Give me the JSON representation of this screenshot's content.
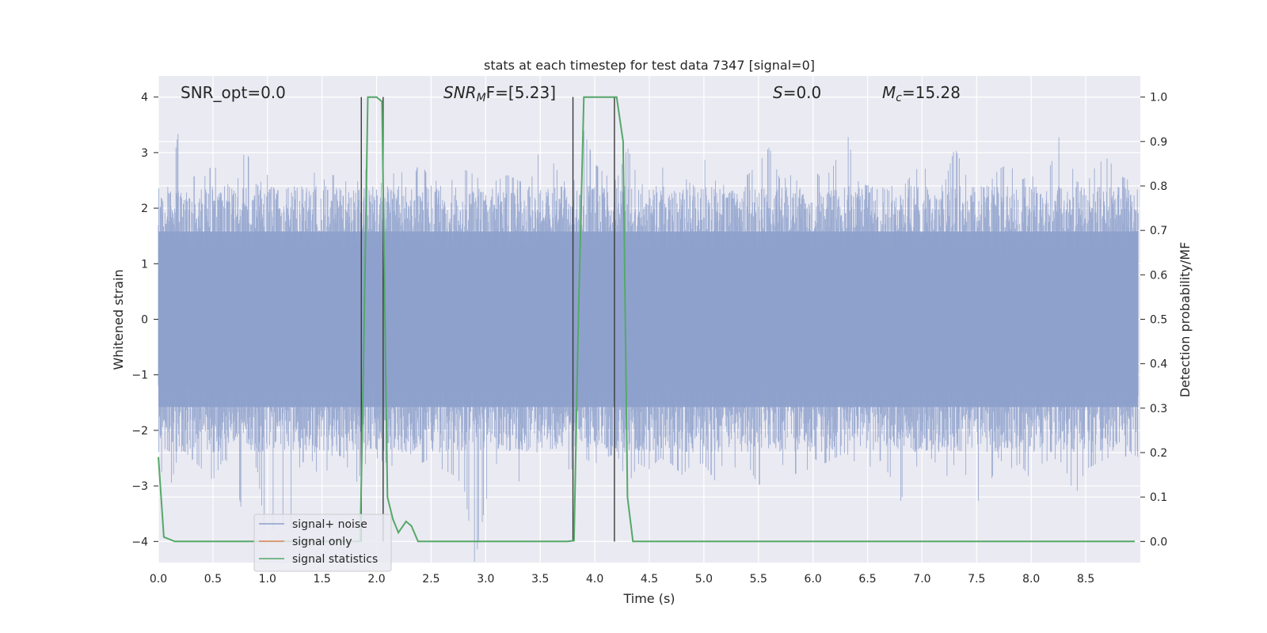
{
  "chart_data": {
    "type": "line",
    "title": "stats at each timestep for test data 7347 [signal=0]",
    "xlabel": "Time (s)",
    "ylabel": "Whitened strain",
    "ylabel_right": "Detection probability/MF",
    "xlim": [
      0.0,
      9.0
    ],
    "ylim": [
      -4.38,
      4.38
    ],
    "ylim_right": [
      -0.0475,
      1.0475
    ],
    "x_ticks": [
      0.0,
      0.5,
      1.0,
      1.5,
      2.0,
      2.5,
      3.0,
      3.5,
      4.0,
      4.5,
      5.0,
      5.5,
      6.0,
      6.5,
      7.0,
      7.5,
      8.0,
      8.5
    ],
    "x_tick_labels": [
      "0.0",
      "0.5",
      "1.0",
      "1.5",
      "2.0",
      "2.5",
      "3.0",
      "3.5",
      "4.0",
      "4.5",
      "5.0",
      "5.5",
      "6.0",
      "6.5",
      "7.0",
      "7.5",
      "8.0",
      "8.5"
    ],
    "y_ticks": [
      -4,
      -3,
      -2,
      -1,
      0,
      1,
      2,
      3,
      4
    ],
    "y_tick_labels": [
      "−4",
      "−3",
      "−2",
      "−1",
      "0",
      "1",
      "2",
      "3",
      "4"
    ],
    "y_right_ticks": [
      0.0,
      0.1,
      0.2,
      0.3,
      0.4,
      0.5,
      0.6,
      0.7,
      0.8,
      0.9,
      1.0
    ],
    "y_right_tick_labels": [
      "0.0",
      "0.1",
      "0.2",
      "0.3",
      "0.4",
      "0.5",
      "0.6",
      "0.7",
      "0.8",
      "0.9",
      "1.0"
    ],
    "grid": true,
    "legend_position": "lower-left",
    "annotations": {
      "snr_opt": "SNR_opt=0.0",
      "snr_mf_italic": "SNR",
      "snr_mf_sub": "M",
      "snr_mf_rest": "F=[5.23]",
      "s_italic": "S",
      "s_rest": "=0.0",
      "mc_italic": "M",
      "mc_sub": "c",
      "mc_rest": "=15.28"
    },
    "noise_envelope": {
      "x": [
        0.0,
        0.1,
        0.2,
        0.3,
        0.4,
        0.5,
        0.6,
        0.7,
        0.8,
        0.9,
        1.0,
        1.1,
        1.2,
        1.3,
        1.4,
        1.5,
        1.6,
        1.7,
        1.8,
        1.9,
        2.0,
        2.1,
        2.2,
        2.3,
        2.4,
        2.5,
        2.6,
        2.7,
        2.8,
        2.9,
        3.0,
        3.1,
        3.2,
        3.3,
        3.4,
        3.5,
        3.6,
        3.7,
        3.8,
        3.9,
        4.0,
        4.1,
        4.2,
        4.3,
        4.4,
        4.5,
        4.6,
        4.7,
        4.8,
        4.9,
        5.0,
        5.1,
        5.2,
        5.3,
        5.4,
        5.5,
        5.6,
        5.7,
        5.8,
        5.9,
        6.0,
        6.1,
        6.2,
        6.3,
        6.4,
        6.5,
        6.6,
        6.7,
        6.8,
        6.9,
        7.0,
        7.1,
        7.2,
        7.3,
        7.4,
        7.5,
        7.6,
        7.7,
        7.8,
        7.9,
        8.0,
        8.1,
        8.2,
        8.3,
        8.4,
        8.5,
        8.6,
        8.7,
        8.8,
        8.9,
        9.0
      ],
      "upper": [
        2.9,
        2.3,
        3.6,
        2.6,
        2.5,
        2.8,
        2.5,
        2.3,
        3.1,
        2.4,
        2.6,
        2.2,
        3.6,
        2.4,
        2.7,
        2.5,
        2.6,
        2.5,
        2.4,
        2.7,
        2.5,
        2.4,
        2.8,
        2.3,
        2.9,
        2.4,
        2.6,
        2.5,
        2.7,
        2.6,
        2.4,
        2.5,
        2.6,
        2.5,
        2.4,
        3.1,
        2.9,
        2.5,
        2.4,
        3.4,
        2.8,
        2.6,
        2.5,
        3.1,
        2.5,
        2.3,
        2.8,
        2.5,
        2.6,
        2.4,
        2.9,
        2.5,
        2.4,
        2.5,
        2.6,
        2.8,
        3.1,
        2.5,
        2.6,
        2.4,
        2.7,
        2.5,
        2.8,
        3.5,
        2.5,
        2.4,
        2.6,
        2.5,
        2.3,
        2.6,
        2.8,
        2.5,
        2.4,
        3.1,
        2.6,
        2.5,
        2.4,
        2.7,
        2.8,
        2.5,
        2.6,
        2.4,
        2.9,
        3.6,
        2.5,
        2.4,
        2.8,
        2.9,
        2.6,
        2.5,
        2.6
      ],
      "lower": [
        -2.6,
        -3.1,
        -2.3,
        -2.5,
        -2.7,
        -2.9,
        -2.5,
        -2.7,
        -3.9,
        -2.6,
        -4.2,
        -3.4,
        -4.0,
        -2.6,
        -2.5,
        -3.0,
        -2.4,
        -2.5,
        -3.0,
        -2.6,
        -2.5,
        -2.6,
        -2.7,
        -2.4,
        -2.6,
        -2.5,
        -2.7,
        -2.8,
        -3.0,
        -4.4,
        -3.3,
        -2.6,
        -2.7,
        -2.9,
        -3.2,
        -3.3,
        -2.6,
        -2.7,
        -2.7,
        -2.5,
        -2.6,
        -2.5,
        -2.4,
        -3.0,
        -2.6,
        -2.7,
        -2.5,
        -2.6,
        -2.8,
        -2.6,
        -2.6,
        -2.9,
        -2.5,
        -2.7,
        -2.6,
        -3.0,
        -2.7,
        -2.6,
        -2.7,
        -2.9,
        -2.5,
        -2.6,
        -2.5,
        -2.4,
        -2.6,
        -2.7,
        -2.5,
        -2.8,
        -3.3,
        -2.7,
        -2.6,
        -2.5,
        -2.9,
        -2.6,
        -2.8,
        -3.3,
        -3.1,
        -2.5,
        -2.7,
        -2.6,
        -2.9,
        -2.6,
        -2.5,
        -2.6,
        -3.2,
        -2.7,
        -2.6,
        -2.5,
        -2.6,
        -2.4,
        -2.5
      ]
    },
    "vertical_markers": [
      1.86,
      2.06,
      3.8,
      4.18
    ],
    "vertical_markers_y": [
      -4.0,
      4.0
    ],
    "series": [
      {
        "name": "signal+ noise",
        "color": "#8da0cb",
        "style": "noise"
      },
      {
        "name": "signal only",
        "color": "#dd8452",
        "style": "flat",
        "value": 0.0
      },
      {
        "name": "signal statistics",
        "color": "#55a868",
        "style": "line-right",
        "x": [
          0.0,
          0.05,
          0.15,
          0.3,
          1.0,
          1.5,
          1.85,
          1.88,
          1.92,
          2.0,
          2.05,
          2.1,
          2.15,
          2.2,
          2.27,
          2.32,
          2.38,
          2.45,
          2.6,
          3.0,
          3.5,
          3.75,
          3.81,
          3.85,
          3.9,
          4.0,
          4.15,
          4.2,
          4.26,
          4.3,
          4.35,
          4.5,
          5.0,
          6.0,
          7.0,
          8.0,
          8.95
        ],
        "y": [
          0.19,
          0.01,
          0.0,
          0.0,
          0.0,
          0.0,
          0.0,
          0.4,
          1.0,
          1.0,
          0.99,
          0.1,
          0.05,
          0.02,
          0.045,
          0.035,
          0.0,
          0.0,
          0.0,
          0.0,
          0.0,
          0.0,
          0.002,
          0.5,
          1.0,
          1.0,
          1.0,
          1.0,
          0.9,
          0.1,
          0.0,
          0.0,
          0.0,
          0.0,
          0.0,
          0.0,
          0.0
        ]
      }
    ]
  }
}
